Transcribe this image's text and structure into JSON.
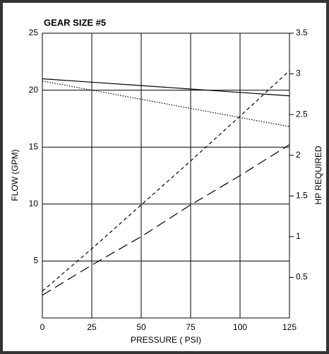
{
  "chart_data": {
    "type": "line",
    "title": "GEAR SIZE #5",
    "xlabel": "PRESSURE ( PSI)",
    "ylabel": "FLOW (GPM)",
    "y2label": "HP REQUIRED",
    "x": [
      0,
      25,
      50,
      75,
      100,
      125
    ],
    "series": [
      {
        "color": "#000000",
        "dash": "solid",
        "values": [
          21,
          20.7,
          20.4,
          20.1,
          19.8,
          19.5
        ]
      },
      {
        "color": "#000000",
        "dash": "dotted",
        "values": [
          20.8,
          20.0,
          19.2,
          18.4,
          17.6,
          16.8
        ]
      },
      {
        "color": "#000000",
        "dash": "short-dash",
        "axis": "y2",
        "values": [
          0.33,
          0.85,
          1.39,
          1.93,
          2.48,
          3.04
        ]
      },
      {
        "color": "#000000",
        "dash": "long-dash",
        "axis": "y2",
        "values": [
          0.28,
          0.65,
          1.0,
          1.39,
          1.75,
          2.13
        ]
      }
    ],
    "xlim": [
      0,
      125
    ],
    "xticks": [
      0,
      25,
      50,
      75,
      100,
      125
    ],
    "ylim": [
      0,
      25
    ],
    "yticks": [
      5,
      10,
      15,
      20,
      25
    ],
    "y2lim": [
      0,
      3.5
    ],
    "y2ticks": [
      0.5,
      1,
      1.5,
      2,
      2.5,
      3,
      3.5
    ],
    "grid": true
  }
}
